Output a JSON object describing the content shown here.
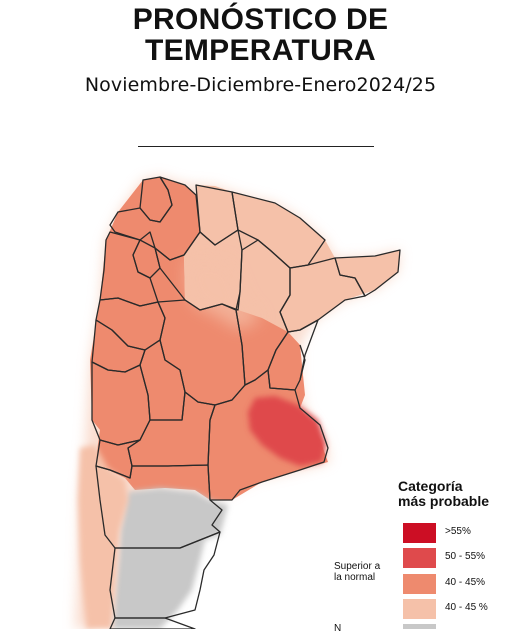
{
  "header": {
    "title_line1": "PRONÓSTICO DE",
    "title_line2": "TEMPERATURA",
    "subtitle": "Noviembre-Diciembre-Enero2024/25"
  },
  "legend": {
    "title_line1": "Categoría",
    "title_line2": "más probable",
    "group_superior_line1": "Superior a",
    "group_superior_line2": "la normal",
    "group_normal_partial": "N",
    "items": [
      {
        "label": ">55%",
        "color": "#cc0e24"
      },
      {
        "label": "50 - 55%",
        "color": "#df4a4c"
      },
      {
        "label": "40 - 45%",
        "color": "#ee8a6e"
      },
      {
        "label": "40 - 45 %",
        "color": "#f5c1a9"
      },
      {
        "label": "",
        "color": "#c8c8c8"
      }
    ]
  },
  "map_colors": {
    "light": "#f5c1a9",
    "medium": "#ee8a6e",
    "strong": "#df4a4c",
    "normal": "#c8c8c8",
    "border": "#2a2a2a"
  }
}
